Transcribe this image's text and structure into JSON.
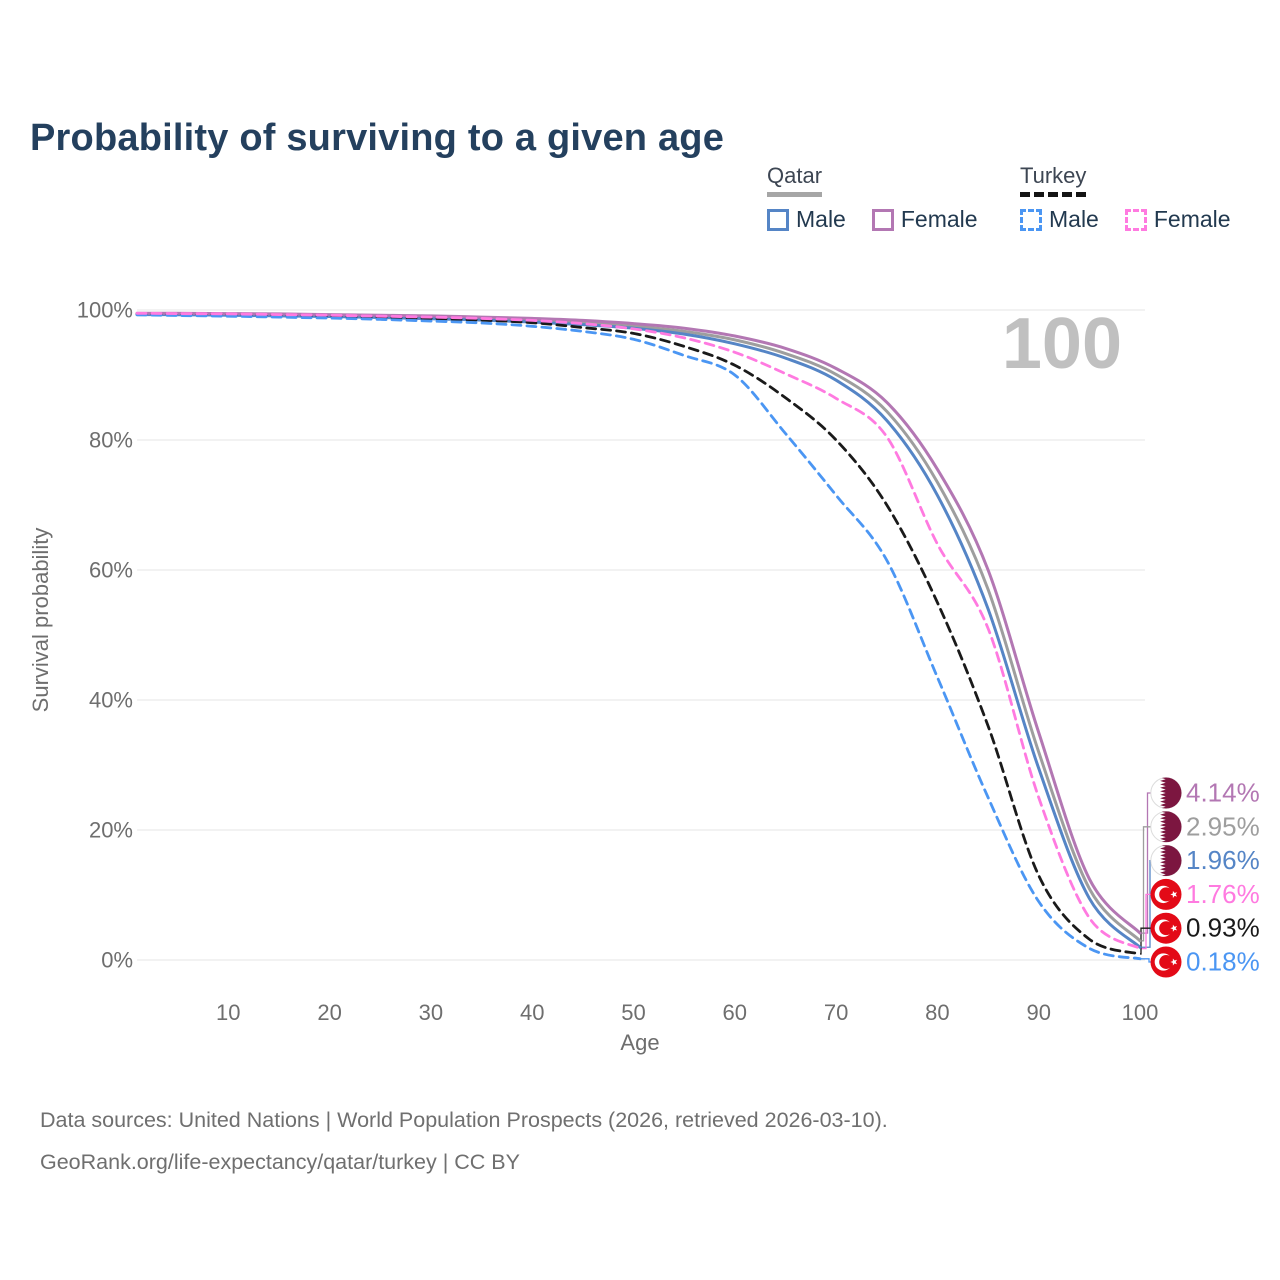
{
  "header": {
    "title": "Probability of surviving to a given age"
  },
  "legend": {
    "groups": [
      {
        "label": "Qatar",
        "line_style": "solid",
        "line_color": "#a6a6a6",
        "items": [
          {
            "label": "Male",
            "color": "#5585c6"
          },
          {
            "label": "Female",
            "color": "#b377b3"
          }
        ]
      },
      {
        "label": "Turkey",
        "line_style": "dashed",
        "line_color": "#141414",
        "items": [
          {
            "label": "Male",
            "color": "#4b96f3"
          },
          {
            "label": "Female",
            "color": "#ff7ae0"
          }
        ]
      }
    ]
  },
  "chart_data": {
    "type": "line",
    "title": "Probability of surviving to a given age",
    "xlabel": "Age",
    "ylabel": "Survival probability",
    "xlim": [
      1,
      100
    ],
    "ylim": [
      0,
      100
    ],
    "grid": "horizontal",
    "age_indicator": "100",
    "x_ticks": [
      10,
      20,
      30,
      40,
      50,
      60,
      70,
      80,
      90,
      100
    ],
    "y_ticks": [
      {
        "value": 100,
        "label": "100%"
      },
      {
        "value": 80,
        "label": "80%"
      },
      {
        "value": 60,
        "label": "60%"
      },
      {
        "value": 40,
        "label": "40%"
      },
      {
        "value": 20,
        "label": "20%"
      },
      {
        "value": 0,
        "label": "0%"
      }
    ],
    "ages": [
      1,
      5,
      10,
      15,
      20,
      25,
      30,
      35,
      40,
      45,
      50,
      55,
      60,
      65,
      70,
      75,
      80,
      85,
      90,
      95,
      100
    ],
    "series": [
      {
        "name": "Qatar Female",
        "country": "Qatar",
        "sex": "Female",
        "style": "solid",
        "color": "#b377b3",
        "flag": "qatar",
        "end_label": "4.14%",
        "values": [
          99.5,
          99.5,
          99.45,
          99.4,
          99.3,
          99.2,
          99.1,
          98.9,
          98.7,
          98.4,
          97.9,
          97.2,
          96.0,
          94.1,
          91.0,
          85.8,
          75.5,
          60.0,
          35.0,
          12.5,
          4.14
        ]
      },
      {
        "name": "Qatar Both sexes",
        "country": "Qatar",
        "sex": "Both",
        "style": "solid",
        "color": "#9e9e9e",
        "flag": "qatar",
        "end_label": "2.95%",
        "values": [
          99.4,
          99.38,
          99.32,
          99.25,
          99.15,
          99.0,
          98.85,
          98.65,
          98.4,
          98.05,
          97.5,
          96.7,
          95.4,
          93.3,
          90.1,
          84.4,
          73.5,
          57.0,
          32.0,
          11.0,
          2.95
        ]
      },
      {
        "name": "Qatar Male",
        "country": "Qatar",
        "sex": "Male",
        "style": "solid",
        "color": "#5585c6",
        "flag": "qatar",
        "end_label": "1.96%",
        "values": [
          99.3,
          99.27,
          99.2,
          99.1,
          99.0,
          98.85,
          98.65,
          98.45,
          98.15,
          97.75,
          97.2,
          96.3,
          94.8,
          92.6,
          89.2,
          83.0,
          71.5,
          54.0,
          29.5,
          9.5,
          1.96
        ]
      },
      {
        "name": "Turkey Female",
        "country": "Turkey",
        "sex": "Female",
        "style": "dashed",
        "color": "#ff7ae0",
        "flag": "turkey",
        "end_label": "1.76%",
        "values": [
          99.5,
          99.45,
          99.4,
          99.3,
          99.2,
          99.05,
          98.9,
          98.7,
          98.4,
          97.9,
          97.1,
          95.7,
          93.5,
          90.2,
          86.4,
          80.5,
          64.0,
          51.0,
          25.0,
          6.5,
          1.76
        ]
      },
      {
        "name": "Turkey Both sexes",
        "country": "Turkey",
        "sex": "Both",
        "style": "dashed",
        "color": "#1a1a1a",
        "flag": "turkey",
        "end_label": "0.93%",
        "values": [
          99.4,
          99.35,
          99.3,
          99.2,
          99.05,
          98.9,
          98.7,
          98.45,
          98.05,
          97.3,
          96.4,
          94.4,
          91.5,
          86.5,
          80.0,
          70.0,
          55.0,
          36.0,
          13.0,
          3.2,
          0.93
        ]
      },
      {
        "name": "Turkey Male",
        "country": "Turkey",
        "sex": "Male",
        "style": "dashed",
        "color": "#4b96f3",
        "flag": "turkey",
        "end_label": "0.18%",
        "values": [
          99.25,
          99.15,
          99.05,
          98.9,
          98.75,
          98.55,
          98.3,
          98.0,
          97.5,
          96.7,
          95.5,
          93.0,
          90.0,
          81.0,
          71.5,
          61.5,
          43.5,
          25.0,
          9.0,
          1.8,
          0.18
        ]
      }
    ],
    "legend_position": "top-right"
  },
  "footer": {
    "line1": "Data sources: United Nations | World Population Prospects (2026, retrieved 2026-03-10).",
    "line2": "GeoRank.org/life-expectancy/qatar/turkey | CC BY"
  }
}
